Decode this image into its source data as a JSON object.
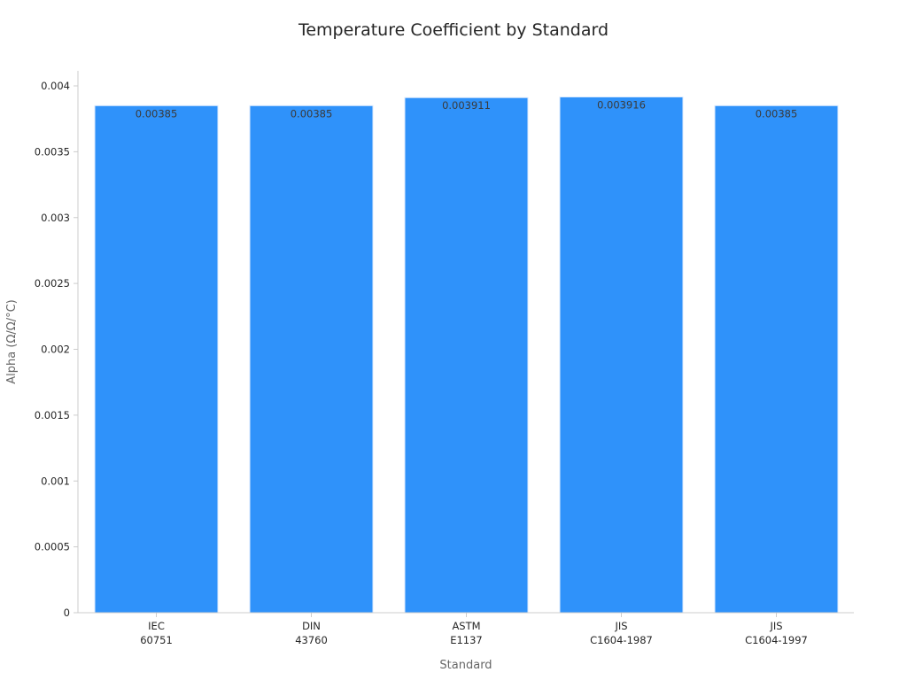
{
  "chart_data": {
    "type": "bar",
    "title": "Temperature Coefficient by Standard",
    "xlabel": "Standard",
    "ylabel": "Alpha (Ω/Ω/°C)",
    "categories": [
      [
        "IEC",
        "60751"
      ],
      [
        "DIN",
        "43760"
      ],
      [
        "ASTM",
        "E1137"
      ],
      [
        "JIS",
        "C1604-1987"
      ],
      [
        "JIS",
        "C1604-1997"
      ]
    ],
    "values": [
      0.00385,
      0.00385,
      0.003911,
      0.003916,
      0.00385
    ],
    "data_labels": [
      "0.00385",
      "0.00385",
      "0.003911",
      "0.003916",
      "0.00385"
    ],
    "ylim": [
      0,
      0.004
    ],
    "y_ticks": [
      0,
      0.0005,
      0.001,
      0.0015,
      0.002,
      0.0025,
      0.003,
      0.0035,
      0.004
    ],
    "y_tick_labels": [
      "0",
      "0.0005",
      "0.001",
      "0.0015",
      "0.002",
      "0.0025",
      "0.003",
      "0.0035",
      "0.004"
    ],
    "grid": false,
    "legend": "none",
    "colors": {
      "bar": "#2f92fa",
      "bar_edge": "#dbeafe",
      "axis": "#cccccc",
      "text": "#262626",
      "axis_label": "#666666"
    }
  }
}
